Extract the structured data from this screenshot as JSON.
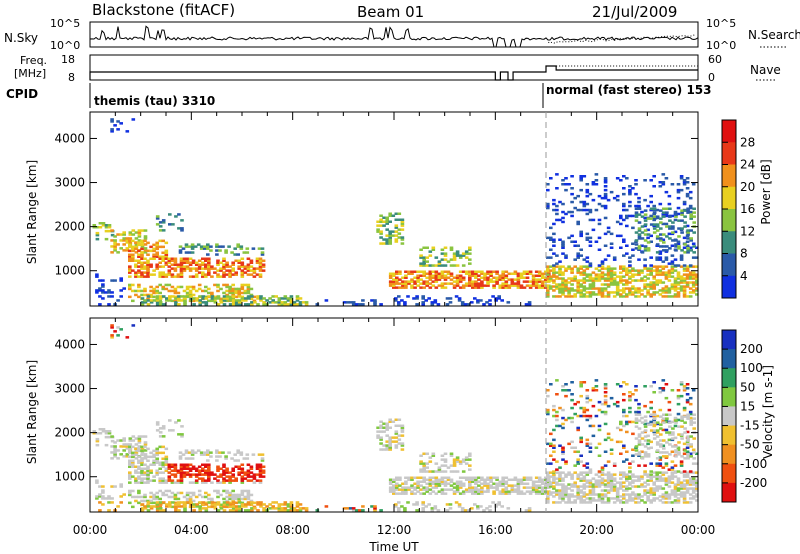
{
  "header": {
    "station": "Blackstone (fitACF)",
    "beam": "Beam 01",
    "date": "21/Jul/2009"
  },
  "panels": {
    "nsky_label": "N.Sky",
    "nsky_tick_top": "10^5",
    "nsky_tick_bottom": "10^0",
    "nsearch_label": "N.Search",
    "nsearch_tick_top": "10^5",
    "nsearch_tick_bottom": "10^0",
    "freq_label_1": "Freq.",
    "freq_label_2": "[MHz]",
    "freq_tick_top": "18",
    "freq_tick_bottom": "8",
    "nave_label": "Nave",
    "nave_tick_top": "60",
    "nave_tick_bottom": "0",
    "cpid_label": "CPID",
    "cpid_1": "themis (tau) 3310",
    "cpid_2": "normal (fast stereo) 153"
  },
  "chart_data": [
    {
      "type": "heatmap",
      "title": "",
      "xlabel": "Time UT",
      "ylabel": "Slant Range [km]",
      "x_ticks": [
        "00:00",
        "04:00",
        "08:00",
        "12:00",
        "16:00",
        "20:00",
        "00:00"
      ],
      "y_ticks": [
        "1000",
        "2000",
        "3000",
        "4000"
      ],
      "ylim": [
        200,
        4600
      ],
      "xlim_hours": [
        0,
        24
      ],
      "colorbar_label": "Power [dB]",
      "colorbar_ticks": [
        "4",
        "8",
        "12",
        "16",
        "20",
        "24",
        "28"
      ],
      "colorbar_colors": [
        "#1030e0",
        "#2a5aa8",
        "#3a8c7c",
        "#8ac440",
        "#e8d020",
        "#f0901c",
        "#e83818",
        "#e01010"
      ],
      "mode_change_hour": 18
    },
    {
      "type": "heatmap",
      "title": "",
      "xlabel": "Time UT",
      "ylabel": "Slant Range [km]",
      "x_ticks": [
        "00:00",
        "04:00",
        "08:00",
        "12:00",
        "16:00",
        "20:00",
        "00:00"
      ],
      "y_ticks": [
        "1000",
        "2000",
        "3000",
        "4000"
      ],
      "ylim": [
        200,
        4600
      ],
      "xlim_hours": [
        0,
        24
      ],
      "colorbar_label": "Velocity [m s-1]",
      "colorbar_ticks": [
        "200",
        "100",
        "50",
        "15",
        "-15",
        "-50",
        "-100",
        "-200"
      ],
      "colorbar_colors": [
        "#1830c0",
        "#2060a0",
        "#30a060",
        "#80c840",
        "#c8c8c8",
        "#f0c030",
        "#f09020",
        "#f05010",
        "#e01010"
      ],
      "mode_change_hour": 18
    }
  ],
  "colors": {
    "accent_dash": "#999999"
  }
}
